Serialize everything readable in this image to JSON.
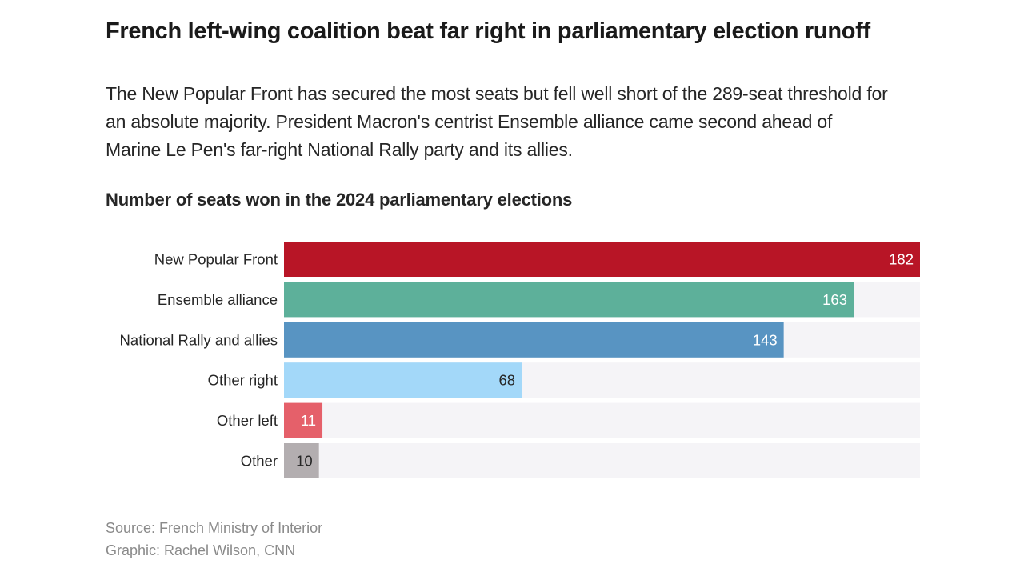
{
  "header": {
    "title": "French left-wing coalition beat far right in parliamentary election runoff",
    "subtitle": "The New Popular Front has secured the most seats but fell well short of the 289-seat threshold for an absolute majority. President Macron's centrist Ensemble alliance came second ahead of Marine Le Pen's far-right National Rally party and its allies."
  },
  "chart_data": {
    "type": "bar",
    "orientation": "horizontal",
    "title": "Number of seats won in the 2024 parliamentary elections",
    "xlabel": "",
    "ylabel": "",
    "xlim": [
      0,
      182
    ],
    "grid": false,
    "categories": [
      "New Popular Front",
      "Ensemble alliance",
      "National Rally and allies",
      "Other right",
      "Other left",
      "Other"
    ],
    "values": [
      182,
      163,
      143,
      68,
      11,
      10
    ],
    "colors": [
      "#b81526",
      "#5db09a",
      "#5894c2",
      "#a3d8f9",
      "#e5606a",
      "#b3aeb0"
    ],
    "label_colors": [
      "#ffffff",
      "#ffffff",
      "#ffffff",
      "#262626",
      "#ffffff",
      "#262626"
    ],
    "track_color": "#f5f4f7"
  },
  "footer": {
    "source": "Source: French Ministry of Interior",
    "credit": "Graphic: Rachel Wilson, CNN"
  }
}
